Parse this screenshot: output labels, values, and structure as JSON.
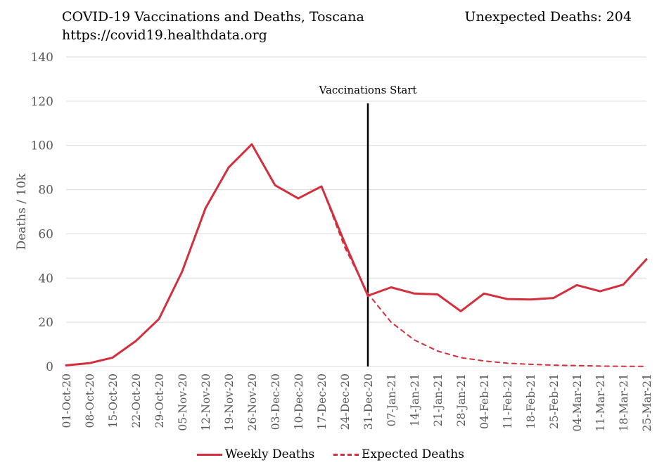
{
  "header": {
    "title": "COVID-19 Vaccinations and Deaths, Toscana",
    "subtitle": "https://covid19.healthdata.org",
    "unexpected_deaths": "Unexpected Deaths: 204"
  },
  "colors": {
    "series": "#d32f3c",
    "grid": "#d9d9d9",
    "vline": "#000000",
    "text": "#595959"
  },
  "chart_data": {
    "type": "line",
    "ylabel": "Deaths / 10k",
    "xlabel": "",
    "ylim": [
      0,
      140
    ],
    "yticks": [
      0,
      20,
      40,
      60,
      80,
      100,
      120,
      140
    ],
    "grid": true,
    "legend_position": "bottom",
    "x": [
      "01-Oct-20",
      "08-Oct-20",
      "15-Oct-20",
      "22-Oct-20",
      "29-Oct-20",
      "05-Nov-20",
      "12-Nov-20",
      "19-Nov-20",
      "26-Nov-20",
      "03-Dec-20",
      "10-Dec-20",
      "17-Dec-20",
      "24-Dec-20",
      "31-Dec-20",
      "07-Jan-21",
      "14-Jan-21",
      "21-Jan-21",
      "28-Jan-21",
      "04-Feb-21",
      "11-Feb-21",
      "18-Feb-21",
      "25-Feb-21",
      "04-Mar-21",
      "11-Mar-21",
      "18-Mar-21",
      "25-Mar-21"
    ],
    "series": [
      {
        "name": "Weekly Deaths",
        "style": "solid",
        "values": [
          0.5,
          1.5,
          4,
          11.5,
          21.5,
          43,
          71.5,
          90,
          100.5,
          82,
          76,
          81.5,
          56,
          32,
          35.8,
          33,
          32.6,
          25,
          33,
          30.5,
          30.3,
          31,
          36.8,
          34,
          37,
          48.5
        ]
      },
      {
        "name": "Expected Deaths",
        "style": "dashed",
        "values": [
          0.5,
          1.5,
          4,
          11.5,
          21.5,
          43,
          71.5,
          90,
          100.5,
          82,
          76,
          81.5,
          54,
          33,
          20,
          12,
          7,
          4,
          2.5,
          1.5,
          1,
          0.6,
          0.4,
          0.2,
          0.1,
          0.1
        ]
      }
    ],
    "annotations": [
      {
        "text": "Vaccinations Start",
        "x": "31-Dec-20"
      }
    ]
  }
}
